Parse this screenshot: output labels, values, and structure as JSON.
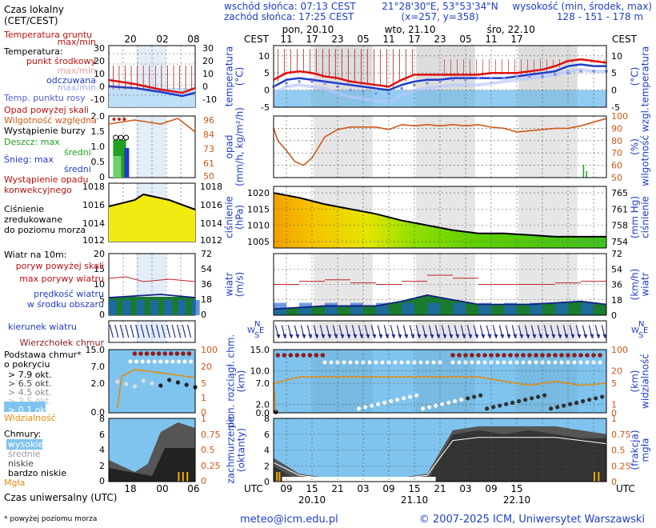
{
  "header": {
    "time_label": "Czas lokalny\n(CET/CEST)",
    "sunrise": "wschód słońca: 07:13 CEST",
    "sunset": "zachód słońca: 17:25 CEST",
    "coords": "21°28'30\"E, 53°53'34\"N",
    "grid": "(x=257, y=358)",
    "elev_label": "wysokość (min, środek, max)",
    "elev_values": "128 - 151 - 178 m",
    "tz_left": "CEST",
    "tz_right": "CEST",
    "days": [
      "pon, 20.10",
      "wto, 21.10",
      "śro, 22.10"
    ],
    "local_hours": [
      "11",
      "17",
      "23",
      "05",
      "11",
      "17",
      "23",
      "05",
      "11",
      "17"
    ],
    "legend_local_hours": [
      "20",
      "02",
      "08"
    ]
  },
  "footer": {
    "utc_label": "UTC",
    "utc_hours": [
      "09",
      "15",
      "21",
      "03",
      "09",
      "15",
      "21",
      "03",
      "09",
      "15"
    ],
    "dates": [
      "20.10",
      "21.10",
      "22.10"
    ],
    "legend_utc_hours": [
      "18",
      "00",
      "06"
    ],
    "universal_time": "Czas uniwersalny (UTC)",
    "footnote": "* powyżej poziomu morza",
    "email": "meteo@icm.edu.pl",
    "copyright": "© 2007-2025 ICM, Uniwersytet Warszawski"
  },
  "legend": {
    "temp_soil": "Temperatura gruntu",
    "maxmin": "max/min",
    "temperature": "Temperatura:",
    "mid_point": "punkt środkowy",
    "maxmin2": "max/min",
    "felt": "odczuwana",
    "maxmin3": "max/min",
    "dew": "Temp. punktu rosy",
    "rain_above": "Opad powyżej skali",
    "rh": "Wilgotność względna",
    "storm": "Wystąpienie burzy",
    "rain": "Deszcz: max",
    "rain_mid": "średni",
    "snow": "Śnieg: max",
    "snow_mid": "średni",
    "conv": "Wystąpienie opadu\nkonwekcyjnego",
    "pressure": "Ciśnienie\nzredukowane\ndo poziomu morza",
    "wind_title": "Wiatr na 10m:",
    "gust_above": "poryw powyżej skali",
    "gust_max": "max porywy wiatru",
    "wind_speed": "prędkość wiatru\nw środku obszaru",
    "wind_dir": "kierunek wiatru",
    "cloud_top": "Wierzchołek chmur",
    "cloud_base": "Podstawa chmur*\no pokryciu",
    "okt": [
      "> 7.9 okt.",
      "> 6.5 okt.",
      "> 4.5 okt.",
      "> 2.5 okt.",
      "> 0.1 okt."
    ],
    "visibility": "Widzialność",
    "clouds": "Chmury:",
    "high": "wysokie",
    "mid": "średnie",
    "low": "niskie",
    "very_low": "bardzo niskie",
    "fog": "Mgła"
  },
  "axes": {
    "temp_label": "temperatura\n(°C)",
    "precip_label": "opad\n(mm/h, kg/m²/h)",
    "rh_label": "(%)\nwilgotność wzgl.",
    "press_label": "ciśnienie\n(hPa)",
    "press_right_label": "(mm Hg)\nciśnienie",
    "wind_label": "wiatr\n(m/s)",
    "wind_right_label": "(km/h)\nwiatr",
    "cloud_label": "pion. rozciągł. chm.\n(km)",
    "vis_label": "(km)\nwidzialność",
    "cover_label": "zachmurzenie\n(oktanty)",
    "fog_label": "(frakcja)\nmgła",
    "temp_ticks_left": [
      "10",
      "5",
      "0",
      "-5"
    ],
    "temp_ticks_right": [
      "10",
      "5",
      "0",
      "-5"
    ],
    "precip_ticks": [
      "2.0",
      "1.5",
      "1.0",
      "0.5",
      "0"
    ],
    "rh_ticks": [
      "100",
      "90",
      "80",
      "70",
      "60",
      "50"
    ],
    "press_ticks": [
      "1020",
      "1015",
      "1010",
      "1005"
    ],
    "press_mm_ticks": [
      "765",
      "761",
      "758",
      "754"
    ],
    "wind_ticks": [
      "20",
      "15",
      "10",
      "5",
      "0"
    ],
    "wind_kmh_ticks": [
      "72",
      "54",
      "36",
      "18",
      "0"
    ],
    "cloud_ticks": [
      "15.0",
      "10.0",
      "7.0",
      "2.0",
      "0.0"
    ],
    "vis_ticks": [
      "100",
      "20",
      "5",
      "1",
      "0"
    ],
    "cover_ticks": [
      "8",
      "6",
      "4",
      "2",
      "0"
    ],
    "fog_ticks": [
      "1",
      "0.75",
      "0.5",
      "0.25",
      "0"
    ],
    "leg_temp_ticks": [
      "30",
      "20",
      "10",
      "0",
      "-10"
    ],
    "leg_precip_ticks": [
      "2.0",
      "1.5",
      "1.0",
      "0.5",
      "0"
    ],
    "leg_rh_ticks": [
      "96",
      "84",
      "73",
      "61",
      "50"
    ],
    "leg_press_ticks": [
      "1018",
      "1016",
      "1014",
      "1012"
    ],
    "leg_wind_ticks": [
      "20",
      "15",
      "10",
      "5",
      "0"
    ],
    "leg_wind_kmh": [
      "72",
      "54",
      "36",
      "18",
      "0"
    ],
    "leg_cloud_ticks": [
      "15.0",
      "7.0",
      "2.0",
      "0.0"
    ],
    "leg_vis_ticks": [
      "100",
      "20",
      "5",
      "1",
      "0"
    ],
    "leg_cover_ticks": [
      "8",
      "6",
      "4",
      "2",
      "0"
    ],
    "leg_fog_ticks": [
      "1",
      "0.75",
      "0.5",
      "0.25",
      "0"
    ]
  },
  "chart_data": [
    {
      "type": "line",
      "title": "temperatura",
      "ylim": [
        -5,
        13
      ],
      "x_hours_from_start": [
        0,
        3,
        6,
        9,
        12,
        15,
        18,
        21,
        24,
        27,
        30,
        33,
        36,
        39,
        42,
        45,
        48,
        51,
        54,
        57,
        60,
        63,
        66,
        69,
        72,
        75,
        78
      ],
      "series": [
        {
          "name": "max/min",
          "values": [
            3,
            5,
            5.5,
            5,
            4,
            3.5,
            2.5,
            2,
            1.5,
            1,
            3,
            4.5,
            4.5,
            4.5,
            4.5,
            4.5,
            4.5,
            5,
            5,
            5,
            5.5,
            6,
            7,
            8.5,
            9,
            8.5,
            8
          ]
        },
        {
          "name": "punkt środkowy",
          "values": [
            1,
            3,
            3.5,
            3,
            2.5,
            2,
            1.5,
            1,
            0.5,
            0,
            1.5,
            2.5,
            3,
            3,
            3.5,
            3.5,
            3.5,
            3.5,
            3.5,
            4,
            4.5,
            5,
            5.5,
            7,
            7.5,
            7,
            7
          ]
        },
        {
          "name": "odczuwana",
          "values": [
            -1,
            1,
            1.5,
            1,
            0.5,
            -1,
            -2,
            -2.5,
            -3,
            -3.5,
            -1.5,
            0,
            0.5,
            1,
            1.5,
            1.5,
            1.5,
            2,
            2.5,
            3,
            3.5,
            4,
            4.5,
            5.5,
            6,
            5.5,
            5.5
          ]
        },
        {
          "name": "Temp. punktu rosy",
          "values": [
            1,
            2,
            2.5,
            2.5,
            2,
            1,
            0,
            -0.5,
            -1,
            -1,
            0.5,
            1.5,
            2,
            2.5,
            3,
            3,
            3.5,
            3.5,
            3.5,
            4,
            4,
            4,
            4.5,
            5,
            5.5,
            5.5,
            5.5
          ]
        }
      ]
    },
    {
      "type": "line",
      "title": "wilgotność wzgl.",
      "ylim": [
        50,
        100
      ],
      "x_hours_from_start": [
        0,
        1,
        3,
        5,
        7,
        9,
        12,
        15,
        18,
        21,
        24,
        27,
        30,
        33,
        36,
        39,
        42,
        45,
        48,
        51,
        54,
        57,
        60,
        63,
        66,
        69,
        72,
        75,
        78
      ],
      "values": [
        90,
        80,
        72,
        63,
        60,
        66,
        83,
        89,
        91,
        91,
        91,
        89,
        93,
        92,
        93,
        92,
        93,
        92,
        93,
        91,
        90,
        87,
        88,
        89,
        90,
        90,
        92,
        95,
        98
      ]
    },
    {
      "type": "area",
      "title": "ciśnienie",
      "ylim": [
        1003,
        1022
      ],
      "x_hours_from_start": [
        0,
        6,
        12,
        18,
        24,
        30,
        36,
        42,
        48,
        54,
        60,
        66,
        72,
        78
      ],
      "values": [
        1020,
        1018.5,
        1016.5,
        1015,
        1013.5,
        1011.5,
        1010,
        1008.5,
        1007.5,
        1007.5,
        1007,
        1006.5,
        1006.5,
        1006.5
      ]
    },
    {
      "type": "line",
      "title": "wiatr",
      "ylim": [
        0,
        20
      ],
      "x_hours_from_start": [
        0,
        6,
        12,
        18,
        24,
        30,
        36,
        42,
        48,
        54,
        60,
        66,
        72,
        78
      ],
      "series": [
        {
          "name": "max porywy wiatru",
          "values": [
            10,
            11,
            11.5,
            10.5,
            10,
            11,
            13,
            12,
            10,
            10,
            10,
            10.5,
            11,
            10
          ]
        },
        {
          "name": "prędkość wiatru",
          "values": [
            2,
            2.5,
            3,
            3,
            3,
            4.5,
            6.5,
            5,
            3.5,
            3.5,
            3.5,
            4,
            4.5,
            3.5
          ]
        }
      ]
    },
    {
      "type": "scatter",
      "title": "pion. rozciągł. chm.",
      "ylim": [
        0,
        15
      ],
      "series": [
        {
          "name": "Wierzchołek chmur",
          "values": [
            14,
            14,
            14,
            14,
            14,
            14,
            14,
            14,
            14,
            14,
            14,
            14,
            14,
            14
          ]
        },
        {
          "name": "Widzialność",
          "values": [
            7,
            8.5,
            8.5,
            8.5,
            8.5,
            8.5,
            8.5,
            8.5,
            8.5,
            7.5,
            6.5,
            7.5,
            6.5,
            7
          ]
        }
      ]
    },
    {
      "type": "area",
      "title": "zachmurzenie",
      "ylim": [
        0,
        8
      ],
      "x_hours_from_start": [
        0,
        6,
        12,
        18,
        24,
        30,
        36,
        42,
        48,
        54,
        60,
        66,
        72,
        78
      ],
      "series": [
        {
          "name": "wysokie",
          "values": [
            3,
            1,
            0.5,
            0.5,
            0.5,
            0.5,
            1,
            6.5,
            7,
            7,
            7,
            7,
            6.5,
            6
          ]
        },
        {
          "name": "niskie",
          "values": [
            2,
            0,
            0,
            0,
            0,
            0,
            0,
            6,
            6.5,
            6,
            6.5,
            6,
            5.5,
            5.5
          ]
        }
      ]
    }
  ]
}
